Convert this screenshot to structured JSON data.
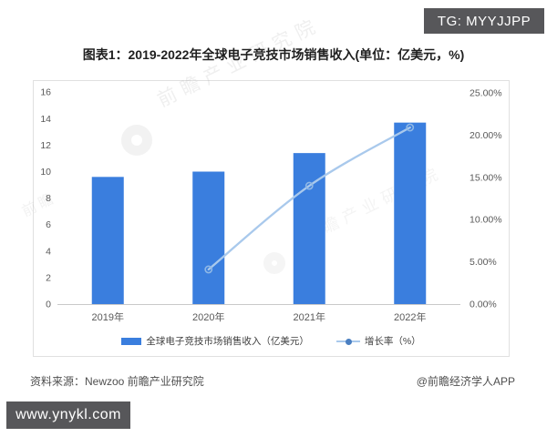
{
  "tg_badge": {
    "text": "TG: MYYJJPP",
    "bg": "#57575A",
    "fg": "#FFFFFF"
  },
  "title": "图表1：2019-2022年全球电子竞技市场销售收入(单位：亿美元，%)",
  "watermark": {
    "text": "前瞻产业研究院",
    "short": "前瞻"
  },
  "chart_data": {
    "type": "bar+line",
    "categories": [
      "2019年",
      "2020年",
      "2021年",
      "2022年"
    ],
    "series": [
      {
        "name": "全球电子竞技市场销售收入（亿美元）",
        "type": "bar",
        "axis": "left",
        "values": [
          9.6,
          10.0,
          11.4,
          13.7
        ],
        "color": "#3A7EDE"
      },
      {
        "name": "增长率（%）",
        "type": "line",
        "axis": "right",
        "values": [
          null,
          4.1,
          14.0,
          20.9
        ],
        "color": "#A9C9EC",
        "marker_color": "#8FB8E6",
        "legend_dot": "#4A7FC1"
      }
    ],
    "y_left": {
      "min": 0,
      "max": 16,
      "step": 2,
      "ticks": [
        "0",
        "2",
        "4",
        "6",
        "8",
        "10",
        "12",
        "14",
        "16"
      ]
    },
    "y_right": {
      "min": 0,
      "max": 25,
      "step": 5,
      "ticks": [
        "0.00%",
        "5.00%",
        "10.00%",
        "15.00%",
        "20.00%",
        "25.00%"
      ]
    },
    "grid": false,
    "legend_position": "bottom",
    "axis_text_color": "#595959",
    "baseline_color": "#C9C9C9"
  },
  "footer": {
    "source": "资料来源：Newzoo 前瞻产业研究院",
    "credit": "@前瞻经济学人APP"
  },
  "url_badge": {
    "text": "www.ynykl.com",
    "bg": "#57575A",
    "fg": "#FFFFFF"
  }
}
